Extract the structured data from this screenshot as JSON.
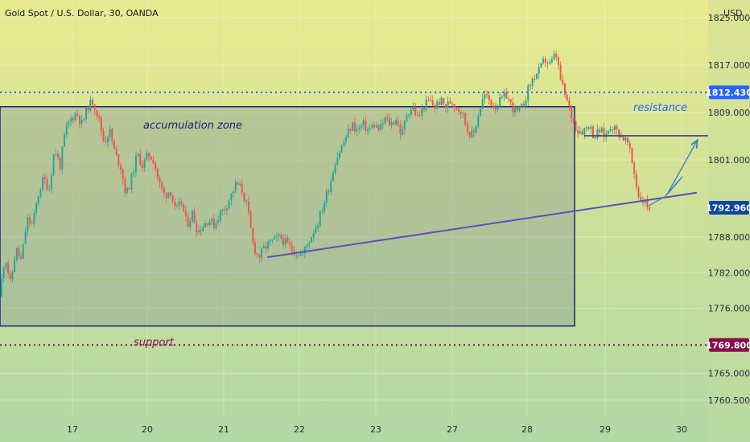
{
  "chart_data": {
    "type": "candlestick",
    "title": "Gold Spot / U.S. Dollar, 30, OANDA",
    "currency": "USD",
    "y_ticks": [
      "1825.000",
      "1817.000",
      "1809.000",
      "1801.000",
      "1788.000",
      "1782.000",
      "1776.000",
      "1765.000",
      "1760.500"
    ],
    "x_ticks": [
      "17",
      "20",
      "21",
      "22",
      "23",
      "27",
      "28",
      "29",
      "30"
    ],
    "ylim": [
      1757.5,
      1828
    ],
    "colors": {
      "up": "#26a69a",
      "down": "#ef5350",
      "resistance": "#2962ff",
      "support": "#880e4f",
      "zone_border": "#1a237e",
      "trendline": "#5c4dbc",
      "arrow": "#3d7ec9",
      "last_price": "#0d47a1"
    },
    "levels": {
      "resistance": {
        "value": 1812.43,
        "label": "1812.430"
      },
      "support": {
        "value": 1769.8,
        "label": "1769.800"
      },
      "last_price": {
        "value": 1792.96,
        "label": "1792.960"
      }
    },
    "annotations": {
      "zone_label": "accumulation zone",
      "resistance_label": "resistance",
      "support_label": "support"
    },
    "zone": {
      "price_top": 1810,
      "price_bottom": 1773
    },
    "trendline": {
      "price_start": 1784.6,
      "price_end": 1795.5
    },
    "flag_top": {
      "price": 1805.1
    },
    "projection_arrow_prices": [
      1793.3,
      1794.8,
      1798.2,
      1795.2,
      1804.2
    ],
    "price_path": [
      1778,
      1785,
      1780,
      1786,
      1784,
      1791,
      1790,
      1795,
      1798,
      1796,
      1803,
      1800,
      1806,
      1808,
      1809,
      1807,
      1810,
      1811,
      1808,
      1804,
      1806,
      1802,
      1800,
      1795,
      1798,
      1802,
      1800,
      1802,
      1801,
      1797,
      1795,
      1796,
      1792,
      1794,
      1790,
      1792,
      1789,
      1790,
      1791,
      1790,
      1792,
      1793,
      1795,
      1797,
      1796,
      1793,
      1787,
      1784.5,
      1786,
      1787,
      1787.5,
      1788,
      1787,
      1786,
      1785.5,
      1785,
      1787,
      1789,
      1791,
      1794,
      1797,
      1801,
      1803,
      1805,
      1807,
      1806,
      1807,
      1806,
      1807,
      1806,
      1808,
      1807,
      1808,
      1805,
      1809,
      1810,
      1808,
      1810,
      1811,
      1810,
      1811,
      1810,
      1811,
      1810,
      1809,
      1806,
      1805,
      1809,
      1812,
      1811,
      1810,
      1811,
      1812,
      1810,
      1809,
      1810,
      1813,
      1815,
      1816,
      1818,
      1817,
      1819,
      1814,
      1811,
      1808,
      1806,
      1806,
      1807,
      1805,
      1806,
      1805,
      1807,
      1806,
      1805,
      1804,
      1800,
      1795,
      1794,
      1793
    ]
  }
}
